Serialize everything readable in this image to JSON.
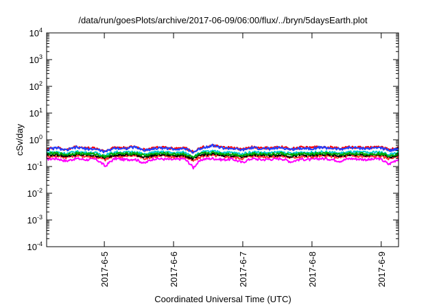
{
  "chart_data": {
    "type": "line",
    "title": "/data/run/goesPlots/archive/2017-06-09/06:00/flux/../bryn/5daysEarth.plot",
    "xlabel": "Coordinated Universal Time (UTC)",
    "ylabel": "cSv/day",
    "y_scale": "log",
    "ylim": [
      0.0001,
      10000
    ],
    "xlim": [
      "2017-06-04T04:00",
      "2017-06-09T06:00"
    ],
    "y_ticks": [
      {
        "value": 0.0001,
        "base": "10",
        "exp": "-4"
      },
      {
        "value": 0.001,
        "base": "10",
        "exp": "-3"
      },
      {
        "value": 0.01,
        "base": "10",
        "exp": "-2"
      },
      {
        "value": 0.1,
        "base": "10",
        "exp": "-1"
      },
      {
        "value": 1,
        "base": "10",
        "exp": "0"
      },
      {
        "value": 10,
        "base": "10",
        "exp": "1"
      },
      {
        "value": 100,
        "base": "10",
        "exp": "2"
      },
      {
        "value": 1000,
        "base": "10",
        "exp": "3"
      },
      {
        "value": 10000,
        "base": "10",
        "exp": "4"
      }
    ],
    "x_ticks": [
      {
        "value": "2017-06-05T00:00",
        "label": "2017-6-5"
      },
      {
        "value": "2017-06-06T00:00",
        "label": "2017-6-6"
      },
      {
        "value": "2017-06-07T00:00",
        "label": "2017-6-7"
      },
      {
        "value": "2017-06-08T00:00",
        "label": "2017-6-8"
      },
      {
        "value": "2017-06-09T00:00",
        "label": "2017-6-9"
      }
    ],
    "grid": false,
    "legend": "none",
    "series": [
      {
        "color": "#ff00ff",
        "base": 0.19,
        "values": [
          0.19,
          0.2,
          0.16,
          0.2,
          0.18,
          0.19,
          0.1,
          0.2,
          0.18,
          0.19,
          0.13,
          0.2,
          0.19,
          0.18,
          0.2,
          0.09,
          0.19,
          0.2,
          0.18,
          0.19,
          0.14,
          0.2,
          0.18,
          0.19,
          0.2,
          0.15,
          0.19,
          0.18,
          0.2,
          0.19,
          0.16,
          0.2,
          0.19,
          0.18,
          0.2,
          0.12,
          0.19
        ]
      },
      {
        "color": "#ff3030",
        "base": 0.24,
        "values": [
          0.24,
          0.25,
          0.22,
          0.26,
          0.24,
          0.23,
          0.18,
          0.25,
          0.24,
          0.26,
          0.2,
          0.24,
          0.25,
          0.23,
          0.24,
          0.16,
          0.25,
          0.26,
          0.24,
          0.23,
          0.2,
          0.25,
          0.24,
          0.23,
          0.25,
          0.21,
          0.24,
          0.23,
          0.25,
          0.24,
          0.22,
          0.25,
          0.24,
          0.23,
          0.25,
          0.2,
          0.24
        ]
      },
      {
        "color": "#000000",
        "base": 0.27,
        "values": [
          0.27,
          0.28,
          0.25,
          0.28,
          0.27,
          0.26,
          0.21,
          0.28,
          0.27,
          0.28,
          0.23,
          0.27,
          0.28,
          0.26,
          0.27,
          0.19,
          0.28,
          0.29,
          0.27,
          0.26,
          0.23,
          0.28,
          0.27,
          0.26,
          0.28,
          0.24,
          0.27,
          0.26,
          0.28,
          0.27,
          0.25,
          0.28,
          0.27,
          0.26,
          0.28,
          0.23,
          0.27
        ]
      },
      {
        "color": "#00cccc",
        "base": 0.33,
        "values": [
          0.33,
          0.35,
          0.3,
          0.36,
          0.33,
          0.32,
          0.26,
          0.35,
          0.33,
          0.36,
          0.28,
          0.34,
          0.35,
          0.32,
          0.34,
          0.24,
          0.35,
          0.37,
          0.34,
          0.33,
          0.29,
          0.35,
          0.33,
          0.32,
          0.35,
          0.3,
          0.34,
          0.33,
          0.35,
          0.34,
          0.31,
          0.35,
          0.34,
          0.33,
          0.35,
          0.28,
          0.34
        ]
      },
      {
        "color": "#00aa00",
        "base": 0.3,
        "values": [
          0.3,
          0.31,
          0.28,
          0.32,
          0.3,
          0.29,
          0.24,
          0.31,
          0.3,
          0.32,
          0.26,
          0.3,
          0.31,
          0.29,
          0.3,
          0.22,
          0.31,
          0.33,
          0.3,
          0.29,
          0.26,
          0.31,
          0.3,
          0.29,
          0.31,
          0.27,
          0.3,
          0.29,
          0.31,
          0.3,
          0.28,
          0.31,
          0.3,
          0.29,
          0.31,
          0.26,
          0.3
        ]
      },
      {
        "color": "#ff0000",
        "base": 0.5,
        "values": [
          0.45,
          0.52,
          0.42,
          0.55,
          0.5,
          0.48,
          0.38,
          0.53,
          0.5,
          0.56,
          0.42,
          0.5,
          0.52,
          0.48,
          0.51,
          0.36,
          0.54,
          0.6,
          0.52,
          0.5,
          0.44,
          0.53,
          0.5,
          0.49,
          0.54,
          0.46,
          0.52,
          0.5,
          0.55,
          0.52,
          0.47,
          0.54,
          0.52,
          0.5,
          0.55,
          0.43,
          0.5
        ]
      },
      {
        "color": "#2040ff",
        "base": 0.45,
        "values": [
          0.42,
          0.5,
          0.4,
          0.52,
          0.46,
          0.45,
          0.35,
          0.5,
          0.47,
          0.53,
          0.4,
          0.47,
          0.5,
          0.45,
          0.48,
          0.34,
          0.51,
          0.62,
          0.49,
          0.47,
          0.41,
          0.5,
          0.47,
          0.46,
          0.51,
          0.43,
          0.49,
          0.47,
          0.52,
          0.49,
          0.44,
          0.51,
          0.49,
          0.47,
          0.52,
          0.4,
          0.47
        ]
      }
    ]
  }
}
